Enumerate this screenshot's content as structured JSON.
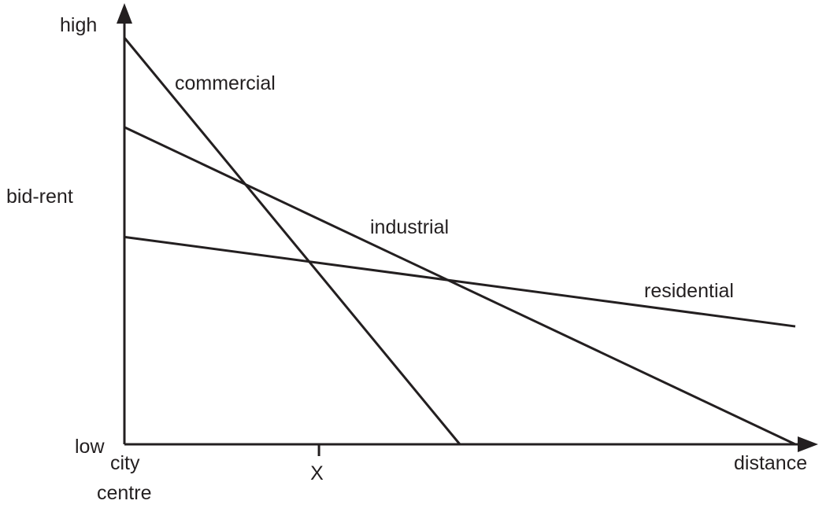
{
  "chart_data": {
    "type": "line",
    "title": "",
    "xlabel": "distance",
    "ylabel": "bid-rent",
    "y_axis_labels": {
      "high": "high",
      "low": "low"
    },
    "x_axis_labels": {
      "origin": "city\ncentre",
      "marker": "X"
    },
    "xlim": [
      0,
      100
    ],
    "ylim": [
      0,
      100
    ],
    "marker_x": 29,
    "series": [
      {
        "name": "commercial",
        "x": [
          0,
          50
        ],
        "y": [
          100,
          0
        ]
      },
      {
        "name": "industrial",
        "x": [
          0,
          100
        ],
        "y": [
          78,
          0
        ]
      },
      {
        "name": "residential",
        "x": [
          0,
          100
        ],
        "y": [
          51,
          29
        ]
      }
    ],
    "grid": false,
    "legend": "labels placed beside each line"
  }
}
